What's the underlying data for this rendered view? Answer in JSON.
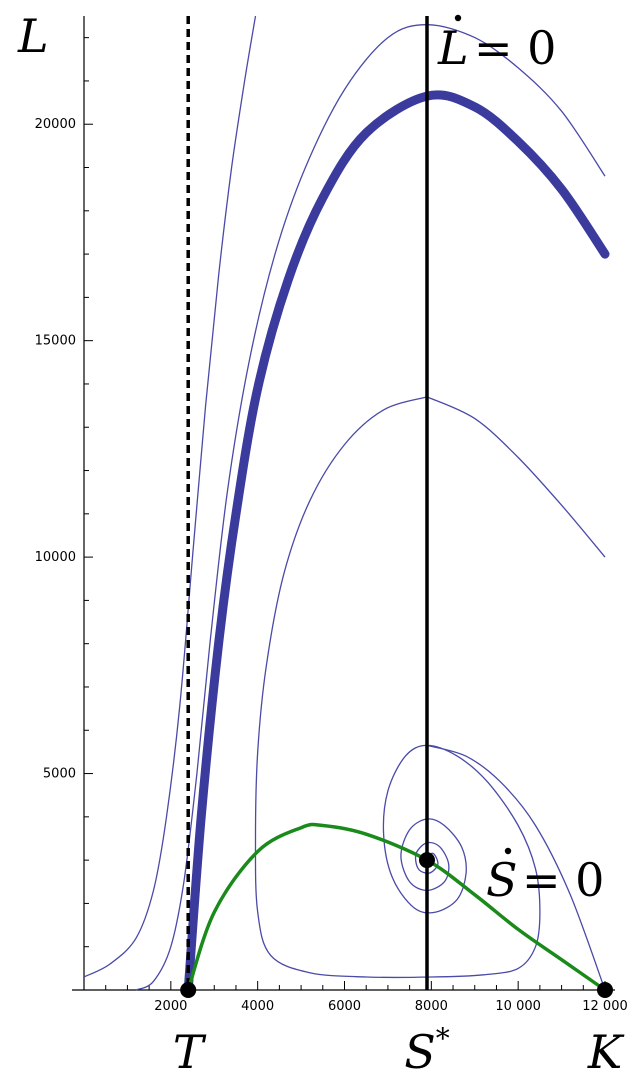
{
  "chart_data": {
    "type": "line",
    "title": "",
    "xlabel": "",
    "ylabel": "L",
    "xlim": [
      0,
      12000
    ],
    "ylim": [
      0,
      22500
    ],
    "x_ticks": [
      2000,
      4000,
      6000,
      8000,
      10000,
      12000
    ],
    "x_tick_labels": [
      "2000",
      "4000",
      "6000",
      "8000",
      "10 000",
      "12 000"
    ],
    "y_ticks": [
      5000,
      10000,
      15000,
      20000
    ],
    "y_tick_labels": [
      "5000",
      "10000",
      "15000",
      "20000"
    ],
    "axis_markers": [
      {
        "label": "T",
        "x": 2400
      },
      {
        "label": "S",
        "superscript": "*",
        "x": 7900
      },
      {
        "label": "K",
        "x": 12000
      }
    ],
    "nullclines": [
      {
        "label": "L",
        "eq": "= 0",
        "type": "vertical",
        "x": 7900,
        "color": "#000000"
      },
      {
        "label": "S",
        "eq": "= 0",
        "type": "curve",
        "color": "#1a8a1a",
        "points": [
          [
            2400,
            0
          ],
          [
            3000,
            1800
          ],
          [
            4000,
            3200
          ],
          [
            5000,
            3750
          ],
          [
            5500,
            3800
          ],
          [
            6500,
            3600
          ],
          [
            7900,
            3000
          ],
          [
            9000,
            2200
          ],
          [
            10000,
            1400
          ],
          [
            11000,
            700
          ],
          [
            12000,
            0
          ]
        ]
      }
    ],
    "threshold": {
      "x": 2400,
      "style": "dashed"
    },
    "equilibria": [
      [
        2400,
        0
      ],
      [
        7900,
        3000
      ],
      [
        12000,
        0
      ]
    ],
    "separatrix": {
      "color": "#3b3b9e",
      "points": [
        [
          2400,
          0
        ],
        [
          2700,
          4000
        ],
        [
          3100,
          8000
        ],
        [
          3500,
          11000
        ],
        [
          4000,
          13900
        ],
        [
          4700,
          16400
        ],
        [
          5500,
          18300
        ],
        [
          6500,
          19800
        ],
        [
          7900,
          20650
        ],
        [
          9000,
          20400
        ],
        [
          10000,
          19600
        ],
        [
          11000,
          18500
        ],
        [
          12000,
          17000
        ]
      ]
    },
    "trajectories": [
      {
        "color": "#4a4aa8",
        "points": [
          [
            0,
            300
          ],
          [
            600,
            600
          ],
          [
            1200,
            1200
          ],
          [
            1600,
            2300
          ],
          [
            1900,
            4000
          ],
          [
            2200,
            6500
          ],
          [
            2500,
            10000
          ],
          [
            2800,
            13500
          ],
          [
            3100,
            16500
          ],
          [
            3400,
            19000
          ],
          [
            3700,
            21000
          ],
          [
            3950,
            22500
          ]
        ]
      },
      {
        "color": "#4a4aa8",
        "points": [
          [
            1200,
            0
          ],
          [
            1600,
            200
          ],
          [
            2000,
            1000
          ],
          [
            2300,
            2500
          ],
          [
            2600,
            5000
          ],
          [
            2900,
            8000
          ],
          [
            3300,
            11500
          ],
          [
            3800,
            14500
          ],
          [
            4400,
            17000
          ],
          [
            5100,
            19000
          ],
          [
            6000,
            20800
          ],
          [
            7000,
            22000
          ],
          [
            7900,
            22300
          ],
          [
            9000,
            22000
          ],
          [
            10000,
            21300
          ],
          [
            11000,
            20300
          ],
          [
            12000,
            18800
          ]
        ]
      },
      {
        "color": "#4a4aa8",
        "points": [
          [
            7900,
            13700
          ],
          [
            6900,
            13400
          ],
          [
            6000,
            12600
          ],
          [
            5200,
            11300
          ],
          [
            4600,
            9600
          ],
          [
            4200,
            7500
          ],
          [
            4000,
            5500
          ],
          [
            3950,
            3500
          ],
          [
            4000,
            1800
          ],
          [
            4300,
            800
          ],
          [
            5200,
            400
          ],
          [
            6500,
            300
          ],
          [
            8000,
            300
          ],
          [
            9200,
            350
          ],
          [
            10000,
            500
          ],
          [
            10400,
            1000
          ],
          [
            10500,
            1800
          ],
          [
            10400,
            2800
          ],
          [
            10000,
            3800
          ],
          [
            9300,
            4800
          ],
          [
            8600,
            5400
          ],
          [
            7900,
            5650
          ],
          [
            7400,
            5400
          ],
          [
            7000,
            4600
          ],
          [
            6900,
            3600
          ],
          [
            7100,
            2600
          ],
          [
            7600,
            1900
          ],
          [
            8100,
            1800
          ],
          [
            8600,
            2100
          ],
          [
            8800,
            2700
          ],
          [
            8700,
            3300
          ],
          [
            8300,
            3800
          ],
          [
            7900,
            3950
          ],
          [
            7500,
            3700
          ],
          [
            7300,
            3100
          ],
          [
            7500,
            2500
          ],
          [
            7900,
            2300
          ],
          [
            8300,
            2500
          ],
          [
            8400,
            2900
          ],
          [
            8200,
            3300
          ],
          [
            7900,
            3400
          ],
          [
            7650,
            3150
          ],
          [
            7700,
            2800
          ],
          [
            7950,
            2700
          ],
          [
            8150,
            2900
          ],
          [
            8050,
            3150
          ],
          [
            7900,
            3100
          ]
        ]
      },
      {
        "color": "#4a4aa8",
        "points": [
          [
            7900,
            13700
          ],
          [
            9000,
            13200
          ],
          [
            10000,
            12300
          ],
          [
            11000,
            11200
          ],
          [
            12000,
            10000
          ]
        ]
      },
      {
        "color": "#4a4aa8",
        "points": [
          [
            7900,
            5650
          ],
          [
            8800,
            5400
          ],
          [
            9600,
            4800
          ],
          [
            10400,
            3800
          ],
          [
            11200,
            2200
          ],
          [
            12000,
            0
          ]
        ]
      }
    ]
  }
}
